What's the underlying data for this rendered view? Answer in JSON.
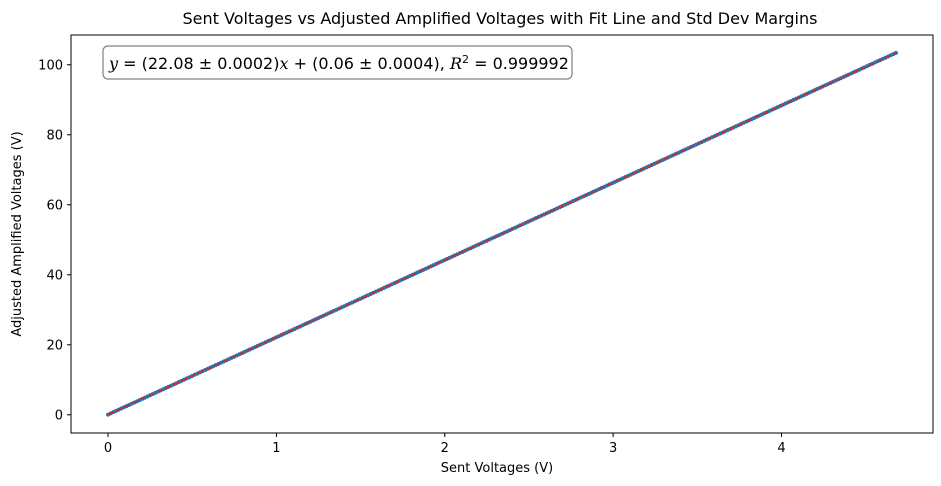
{
  "chart_data": {
    "type": "scatter",
    "title": "Sent Voltages vs Adjusted Amplified Voltages with Fit Line and Std Dev Margins",
    "xlabel": "Sent Voltages (V)",
    "ylabel": "Adjusted Amplified Voltages (V)",
    "xlim": [
      -0.22,
      4.9
    ],
    "ylim": [
      -5.2,
      108.5
    ],
    "xticks": [
      "0",
      "1",
      "2",
      "3",
      "4"
    ],
    "yticks": [
      "0",
      "20",
      "40",
      "60",
      "80",
      "100"
    ],
    "grid": false,
    "x_range": [
      0.0,
      4.68
    ],
    "fit": {
      "slope": 22.08,
      "intercept": 0.06
    },
    "series": [
      {
        "kind": "points",
        "color": "#1f77b4"
      },
      {
        "kind": "fit-line",
        "color": "#d62728"
      }
    ],
    "annotation": {
      "y_var": "y",
      "eq_open": " = (22.08 ± 0.0002)",
      "x_var": "x",
      "eq_mid": " + (0.06 ± 0.0004), ",
      "r_var": "R",
      "r_sup": "2",
      "r_val": " = 0.999992"
    }
  }
}
